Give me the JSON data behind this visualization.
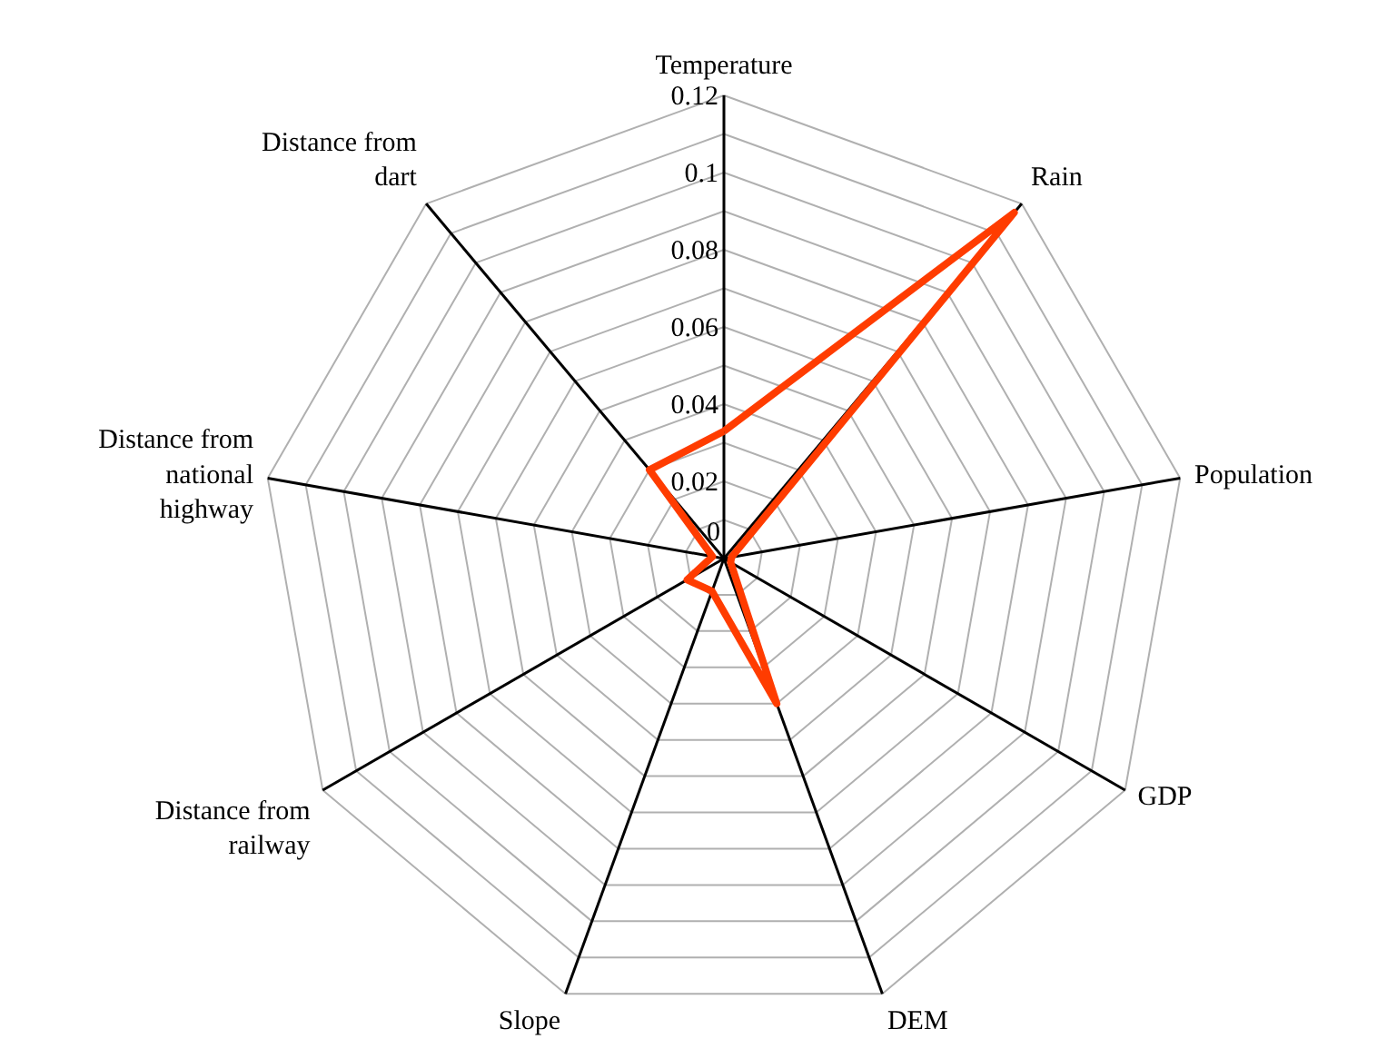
{
  "chart_data": {
    "type": "radar",
    "categories": [
      "Temperature",
      "Rain",
      "Population",
      "GDP",
      "DEM",
      "Slope",
      "Distance from railway",
      "Distance from national highway",
      "Distance from dart"
    ],
    "series": [
      {
        "color": "#ff3c00",
        "values": [
          0.033,
          0.117,
          0.002,
          0.002,
          0.04,
          0.009,
          0.011,
          0.003,
          0.03
        ]
      }
    ],
    "ylim": [
      0,
      0.12
    ],
    "yticks": [
      0,
      0.02,
      0.04,
      0.06,
      0.08,
      0.1,
      0.12
    ],
    "grid": true,
    "marker": "none",
    "line_style": "solid"
  }
}
